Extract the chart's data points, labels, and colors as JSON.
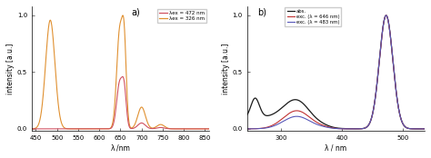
{
  "panel_a": {
    "label": "a)",
    "xlabel": "λ /nm",
    "ylabel": "intensity [a.u.]",
    "xlim": [
      440,
      860
    ],
    "ylim": [
      -0.02,
      1.08
    ],
    "yticks": [
      0.0,
      0.5,
      1.0
    ],
    "xticks": [
      450,
      500,
      550,
      600,
      650,
      700,
      750,
      800,
      850
    ],
    "legend_472": "λex = 472 nm",
    "legend_326": "λex = 326 nm",
    "color_472": "#d05060",
    "color_326": "#e09030"
  },
  "panel_b": {
    "label": "b)",
    "xlabel": "λ / nm",
    "ylabel": "intensity [a.u.]",
    "xlim": [
      245,
      535
    ],
    "ylim": [
      -0.02,
      1.08
    ],
    "yticks": [
      0.0,
      0.5,
      1.0
    ],
    "xticks": [
      300,
      400,
      500
    ],
    "legend_abs": "abs.",
    "legend_exc646": "exc. (λ = 646 nm)",
    "legend_exc483": "exc. (λ = 483 nm)",
    "color_abs": "#1a1a1a",
    "color_exc646": "#c03030",
    "color_exc483": "#5858b8"
  }
}
